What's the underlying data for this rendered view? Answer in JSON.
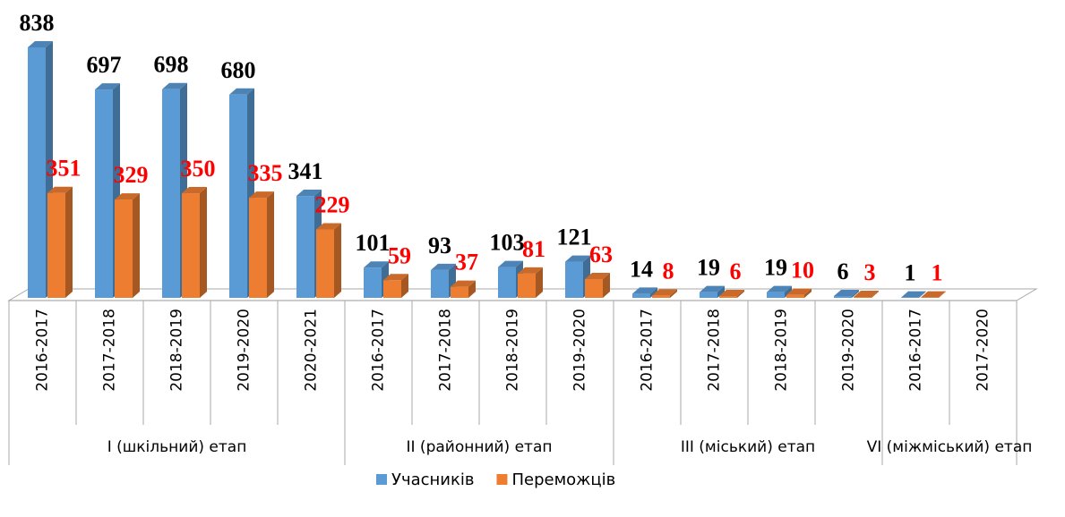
{
  "chart_data": {
    "type": "bar3d",
    "groups": [
      {
        "name": "I (шкільний) етап",
        "categories": [
          "2016-2017",
          "2017-2018",
          "2018-2019",
          "2019-2020",
          "2020-2021"
        ]
      },
      {
        "name": "II (районний) етап",
        "categories": [
          "2016-2017",
          "2017-2018",
          "2018-2019",
          "2019-2020"
        ]
      },
      {
        "name": "III (міський) етап",
        "categories": [
          "2016-2017",
          "2017-2018",
          "2018-2019",
          "2019-2020"
        ]
      },
      {
        "name": "VI (міжміський) етап",
        "categories": [
          "2016-2017",
          "2017-2020"
        ]
      }
    ],
    "series": [
      {
        "name": "Учасників",
        "color": "#5b9bd5",
        "label_color": "#000000",
        "values": [
          838,
          697,
          698,
          680,
          341,
          101,
          93,
          103,
          121,
          14,
          19,
          19,
          6,
          1,
          null
        ]
      },
      {
        "name": "Переможців",
        "color": "#ed7d31",
        "label_color": "#ff0000",
        "values": [
          351,
          329,
          350,
          335,
          229,
          59,
          37,
          81,
          63,
          8,
          6,
          10,
          3,
          1,
          null
        ]
      }
    ],
    "legend": "bottom"
  }
}
